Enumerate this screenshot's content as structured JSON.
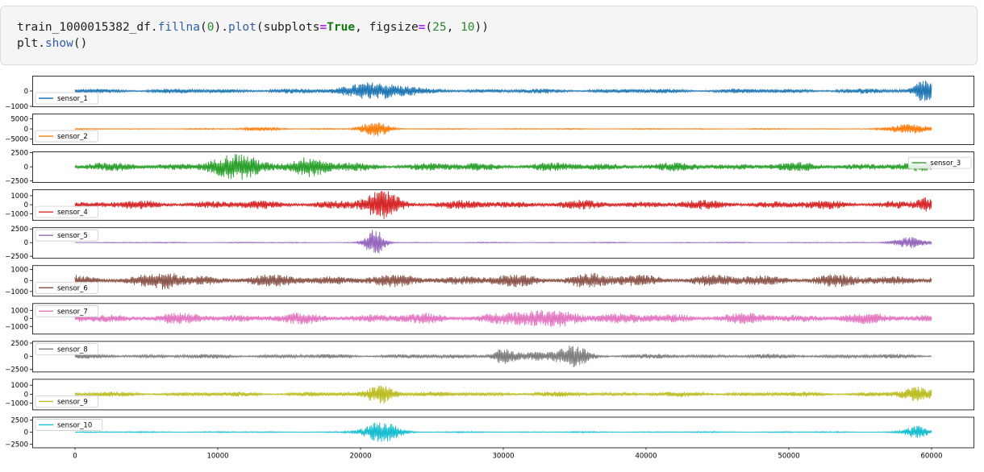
{
  "code_cell": {
    "line1": {
      "var": "train_1000015382_df",
      "dot1": ".",
      "m1": "fillna",
      "p1": "(",
      "arg1": "0",
      "p2": ")",
      "dot2": ".",
      "m2": "plot",
      "p3": "(",
      "kw1": "subplots",
      "eq1": "=",
      "val1": "True",
      "sep1": ", ",
      "kw2": "figsize",
      "eq2": "=",
      "p4": "(",
      "n1": "25",
      "sep2": ", ",
      "n2": "10",
      "p5": "))"
    },
    "line2": {
      "obj": "plt",
      "dot": ".",
      "m": "show",
      "p": "()"
    }
  },
  "chart_data": {
    "type": "line",
    "xlim": [
      0,
      60000
    ],
    "x_ticks": [
      "0",
      "10000",
      "20000",
      "30000",
      "40000",
      "50000",
      "60000"
    ],
    "grid": false,
    "panels": [
      {
        "name": "sensor_1",
        "color": "#1f77b4",
        "legend": "bottom-left",
        "ylim": [
          -1000,
          1000
        ],
        "y_ticks": [
          "0",
          "−1000"
        ],
        "base_amp": 150,
        "bursts": [
          [
            21000,
            2200,
            500
          ],
          [
            59500,
            700,
            700
          ]
        ]
      },
      {
        "name": "sensor_2",
        "color": "#ff7f0e",
        "legend": "bottom-left",
        "ylim": [
          -7500,
          7500
        ],
        "y_ticks": [
          "5000",
          "0",
          "−5000"
        ],
        "base_amp": 250,
        "bursts": [
          [
            21000,
            1000,
            4000
          ],
          [
            13000,
            1500,
            800
          ],
          [
            58500,
            1500,
            2200
          ]
        ]
      },
      {
        "name": "sensor_3",
        "color": "#2ca02c",
        "legend": "right",
        "ylim": [
          -2700,
          2700
        ],
        "y_ticks": [
          "2500",
          "0",
          "−2500"
        ],
        "base_amp": 700,
        "bursts": [
          [
            11500,
            2000,
            1600
          ],
          [
            16500,
            1200,
            1300
          ]
        ]
      },
      {
        "name": "sensor_4",
        "color": "#d62728",
        "legend": "bottom-left",
        "ylim": [
          -1700,
          1700
        ],
        "y_ticks": [
          "1000",
          "0",
          "−1000"
        ],
        "base_amp": 450,
        "bursts": [
          [
            21500,
            1200,
            1300
          ],
          [
            59500,
            500,
            500
          ]
        ]
      },
      {
        "name": "sensor_5",
        "color": "#9467bd",
        "legend": "top-left",
        "ylim": [
          -2800,
          2800
        ],
        "y_ticks": [
          "2500",
          "0",
          "−2500"
        ],
        "base_amp": 80,
        "bursts": [
          [
            21000,
            700,
            2500
          ],
          [
            58500,
            1200,
            1000
          ]
        ]
      },
      {
        "name": "sensor_6",
        "color": "#8c564b",
        "legend": "bottom-left",
        "ylim": [
          -1400,
          1400
        ],
        "y_ticks": [
          "1000",
          "0",
          "−1000"
        ],
        "base_amp": 500,
        "bursts": [
          [
            6500,
            1000,
            400
          ],
          [
            36000,
            1200,
            300
          ]
        ]
      },
      {
        "name": "sensor_7",
        "color": "#e377c2",
        "legend": "top-left",
        "ylim": [
          -1900,
          1900
        ],
        "y_ticks": [
          "1000",
          "0",
          "−1000"
        ],
        "base_amp": 600,
        "bursts": [
          [
            34000,
            2000,
            600
          ],
          [
            31000,
            1500,
            400
          ]
        ]
      },
      {
        "name": "sensor_8",
        "color": "#7f7f7f",
        "legend": "top-left",
        "ylim": [
          -2900,
          2900
        ],
        "y_ticks": [
          "2500",
          "0",
          "−2500"
        ],
        "base_amp": 400,
        "bursts": [
          [
            35000,
            1000,
            2000
          ],
          [
            30000,
            800,
            1400
          ],
          [
            33000,
            1500,
            600
          ]
        ]
      },
      {
        "name": "sensor_9",
        "color": "#bcbd22",
        "legend": "bottom-left",
        "ylim": [
          -1700,
          1700
        ],
        "y_ticks": [
          "1000",
          "0",
          "−1000"
        ],
        "base_amp": 250,
        "bursts": [
          [
            21500,
            1000,
            1000
          ],
          [
            59000,
            1200,
            600
          ]
        ]
      },
      {
        "name": "sensor_10",
        "color": "#17becf",
        "legend": "top-left",
        "ylim": [
          -3200,
          3200
        ],
        "y_ticks": [
          "2500",
          "0",
          "−2500"
        ],
        "base_amp": 120,
        "bursts": [
          [
            21500,
            1300,
            2200
          ],
          [
            59000,
            900,
            1200
          ]
        ]
      }
    ]
  }
}
